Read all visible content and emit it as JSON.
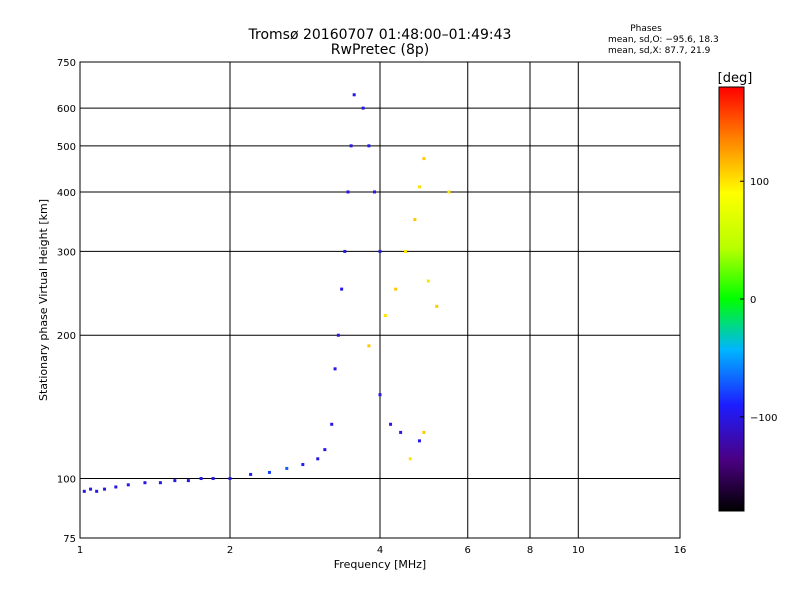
{
  "header": {
    "title_line1": "Tromsø 20160707 01:48:00–01:49:43",
    "title_line2": "RwPretec (8p)",
    "phases_title": "Phases",
    "phases_o": "mean, sd,O: −95.6, 18.3",
    "phases_x": "mean, sd,X:  87.7, 21.9"
  },
  "colorbar": {
    "label": "[deg]",
    "tick_labels": [
      "100",
      "0",
      "−100"
    ],
    "tick_values": [
      100,
      0,
      -100
    ],
    "range": [
      -180,
      180
    ]
  },
  "chart_data": {
    "type": "scatter",
    "xlabel": "Frequency [MHz]",
    "ylabel": "Stationary phase Virtual Height [km]",
    "xscale": "log",
    "yscale": "log",
    "xlim": [
      1,
      16
    ],
    "ylim": [
      75,
      750
    ],
    "xticks": [
      1,
      2,
      4,
      6,
      8,
      10,
      16
    ],
    "yticks": [
      75,
      100,
      200,
      300,
      400,
      500,
      600,
      750
    ],
    "xgrid": [
      2,
      4,
      6,
      8,
      10
    ],
    "ygrid": [
      100,
      200,
      300,
      400,
      500,
      600
    ],
    "grid": true,
    "color_encodes": "phase [deg]",
    "series": [
      {
        "values": [
          {
            "x": 1.02,
            "y": 94,
            "c": -100
          },
          {
            "x": 1.05,
            "y": 95,
            "c": -100
          },
          {
            "x": 1.08,
            "y": 94,
            "c": -100
          },
          {
            "x": 1.12,
            "y": 95,
            "c": -100
          },
          {
            "x": 1.18,
            "y": 96,
            "c": -100
          },
          {
            "x": 1.25,
            "y": 97,
            "c": -100
          },
          {
            "x": 1.35,
            "y": 98,
            "c": -100
          },
          {
            "x": 1.45,
            "y": 98,
            "c": -100
          },
          {
            "x": 1.55,
            "y": 99,
            "c": -100
          },
          {
            "x": 1.65,
            "y": 99,
            "c": -100
          },
          {
            "x": 1.75,
            "y": 100,
            "c": -100
          },
          {
            "x": 1.85,
            "y": 100,
            "c": -100
          },
          {
            "x": 2.0,
            "y": 100,
            "c": -100
          },
          {
            "x": 2.2,
            "y": 102,
            "c": -90
          },
          {
            "x": 2.4,
            "y": 103,
            "c": -80
          },
          {
            "x": 2.6,
            "y": 105,
            "c": -70
          },
          {
            "x": 2.8,
            "y": 107,
            "c": -90
          },
          {
            "x": 3.0,
            "y": 110,
            "c": -100
          },
          {
            "x": 3.1,
            "y": 115,
            "c": -100
          },
          {
            "x": 3.2,
            "y": 130,
            "c": -100
          },
          {
            "x": 3.25,
            "y": 170,
            "c": -100
          },
          {
            "x": 3.3,
            "y": 200,
            "c": -100
          },
          {
            "x": 3.35,
            "y": 250,
            "c": -100
          },
          {
            "x": 3.4,
            "y": 300,
            "c": -100
          },
          {
            "x": 3.45,
            "y": 400,
            "c": -100
          },
          {
            "x": 3.5,
            "y": 500,
            "c": -100
          },
          {
            "x": 3.55,
            "y": 640,
            "c": -100
          },
          {
            "x": 3.7,
            "y": 600,
            "c": -100
          },
          {
            "x": 3.8,
            "y": 500,
            "c": -100
          },
          {
            "x": 3.9,
            "y": 400,
            "c": -100
          },
          {
            "x": 4.0,
            "y": 300,
            "c": -100
          },
          {
            "x": 4.0,
            "y": 150,
            "c": -100
          },
          {
            "x": 4.2,
            "y": 130,
            "c": -100
          },
          {
            "x": 4.4,
            "y": 125,
            "c": -100
          },
          {
            "x": 4.8,
            "y": 120,
            "c": -100
          }
        ]
      },
      {
        "values": [
          {
            "x": 3.8,
            "y": 190,
            "c": 110
          },
          {
            "x": 4.1,
            "y": 220,
            "c": 100
          },
          {
            "x": 4.3,
            "y": 250,
            "c": 110
          },
          {
            "x": 4.5,
            "y": 300,
            "c": 100
          },
          {
            "x": 4.7,
            "y": 350,
            "c": 110
          },
          {
            "x": 4.8,
            "y": 410,
            "c": 100
          },
          {
            "x": 4.9,
            "y": 470,
            "c": 110
          },
          {
            "x": 5.0,
            "y": 260,
            "c": 100
          },
          {
            "x": 5.2,
            "y": 230,
            "c": 110
          },
          {
            "x": 4.6,
            "y": 110,
            "c": 100
          },
          {
            "x": 4.9,
            "y": 125,
            "c": 110
          },
          {
            "x": 5.5,
            "y": 400,
            "c": 100
          }
        ]
      }
    ]
  }
}
